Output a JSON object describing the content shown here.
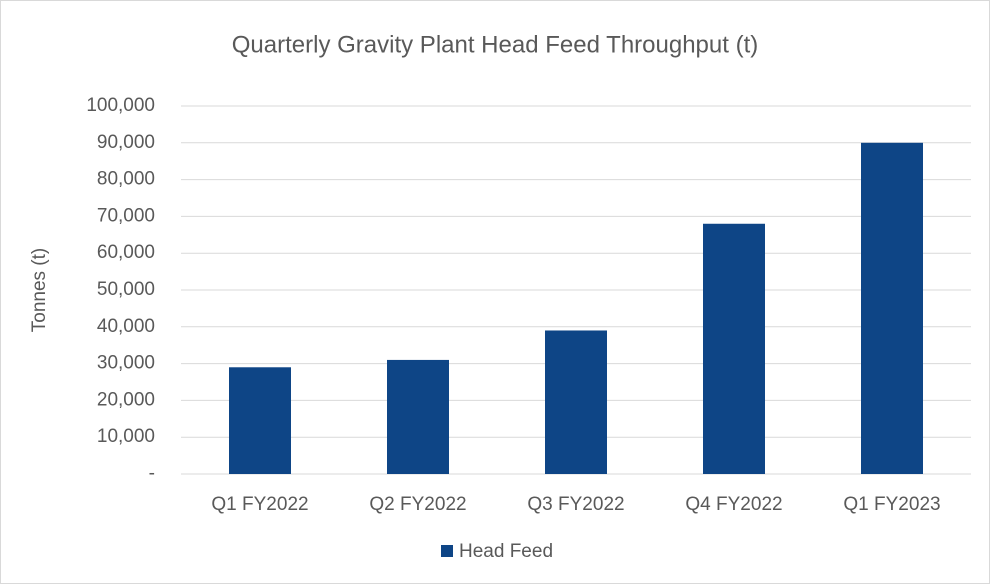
{
  "chart_data": {
    "type": "bar",
    "title": "Quarterly Gravity Plant Head Feed Throughput (t)",
    "y_label": "Tonnes (t)",
    "categories": [
      "Q1 FY2022",
      "Q2 FY2022",
      "Q3 FY2022",
      "Q4 FY2022",
      "Q1 FY2023"
    ],
    "series": [
      {
        "name": "Head Feed",
        "color": "#0e4586",
        "values": [
          29000,
          31000,
          39000,
          68000,
          90000
        ]
      }
    ],
    "ylim": [
      0,
      100000
    ],
    "yticks": [
      {
        "value": 0,
        "label": "-"
      },
      {
        "value": 10000,
        "label": "10,000"
      },
      {
        "value": 20000,
        "label": "20,000"
      },
      {
        "value": 30000,
        "label": "30,000"
      },
      {
        "value": 40000,
        "label": "40,000"
      },
      {
        "value": 50000,
        "label": "50,000"
      },
      {
        "value": 60000,
        "label": "60,000"
      },
      {
        "value": 70000,
        "label": "70,000"
      },
      {
        "value": 80000,
        "label": "80,000"
      },
      {
        "value": 90000,
        "label": "90,000"
      },
      {
        "value": 100000,
        "label": "100,000"
      }
    ],
    "grid": true,
    "legend": "bottom"
  }
}
